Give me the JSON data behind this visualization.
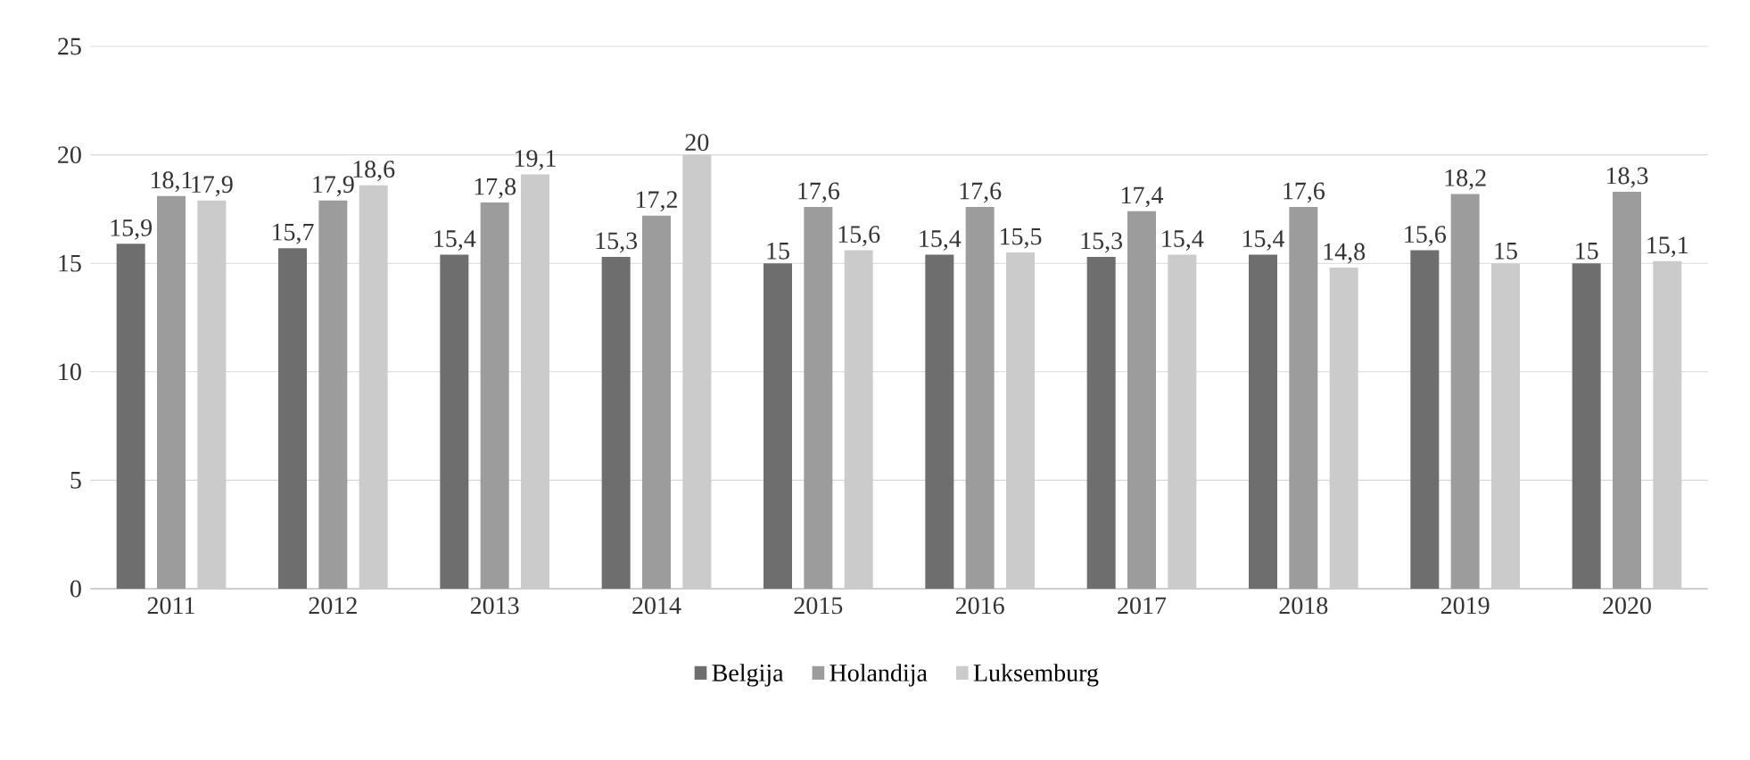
{
  "chart_data": {
    "type": "bar",
    "categories": [
      "2011",
      "2012",
      "2013",
      "2014",
      "2015",
      "2016",
      "2017",
      "2018",
      "2019",
      "2020"
    ],
    "series": [
      {
        "name": "Belgija",
        "color": "#6e6e6e",
        "values": [
          15.9,
          15.7,
          15.4,
          15.3,
          15,
          15.4,
          15.3,
          15.4,
          15.6,
          15
        ],
        "value_labels": [
          "15,9",
          "15,7",
          "15,4",
          "15,3",
          "15",
          "15,4",
          "15,3",
          "15,4",
          "15,6",
          "15"
        ]
      },
      {
        "name": "Holandija",
        "color": "#9c9c9c",
        "values": [
          18.1,
          17.9,
          17.8,
          17.2,
          17.6,
          17.6,
          17.4,
          17.6,
          18.2,
          18.3
        ],
        "value_labels": [
          "18,1",
          "17,9",
          "17,8",
          "17,2",
          "17,6",
          "17,6",
          "17,4",
          "17,6",
          "18,2",
          "18,3"
        ]
      },
      {
        "name": "Luksemburg",
        "color": "#cbcbcb",
        "values": [
          17.9,
          18.6,
          19.1,
          20,
          15.6,
          15.5,
          15.4,
          14.8,
          15,
          15.1
        ],
        "value_labels": [
          "17,9",
          "18,6",
          "19,1",
          "20",
          "15,6",
          "15,5",
          "15,4",
          "14,8",
          "15",
          "15,1"
        ]
      }
    ],
    "ylim": [
      0,
      25
    ],
    "yticks": [
      0,
      5,
      10,
      15,
      20,
      25
    ],
    "grid": "y",
    "legend": "bottom"
  }
}
